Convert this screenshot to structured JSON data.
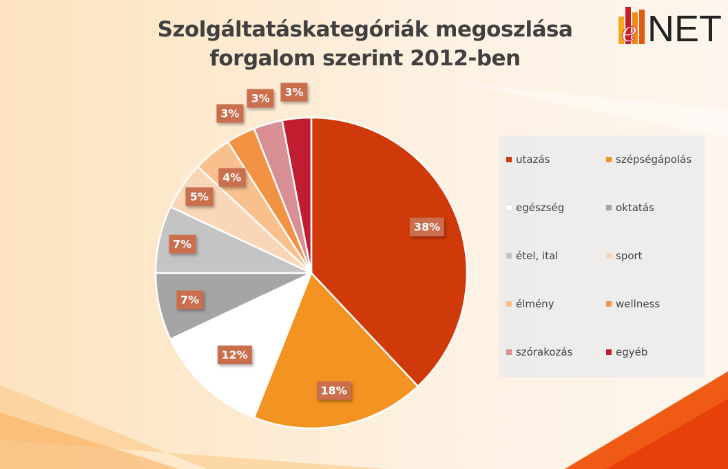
{
  "chart_data": {
    "type": "pie",
    "title": "Szolgáltatáskategóriák megoszlása forgalom szerint 2012-ben",
    "title_lines": [
      "Szolgáltatáskategóriák megoszlása",
      "forgalom szerint 2012-ben"
    ],
    "legend_position": "right",
    "slices": [
      {
        "label": "utazás",
        "value": 38,
        "display": "38%",
        "color": "#D0390A"
      },
      {
        "label": "szépségápolás",
        "value": 18,
        "display": "18%",
        "color": "#F39321"
      },
      {
        "label": "egészség",
        "value": 12,
        "display": "12%",
        "color": "#FFFFFF"
      },
      {
        "label": "oktatás",
        "value": 7,
        "display": "7%",
        "color": "#A5A5A5"
      },
      {
        "label": "étel, ital",
        "value": 7,
        "display": "7%",
        "color": "#C4C4C4"
      },
      {
        "label": "sport",
        "value": 5,
        "display": "5%",
        "color": "#FAD6B8"
      },
      {
        "label": "élmény",
        "value": 4,
        "display": "4%",
        "color": "#F9C08E"
      },
      {
        "label": "wellness",
        "value": 3,
        "display": "3%",
        "color": "#F29344"
      },
      {
        "label": "szórakozás",
        "value": 3,
        "display": "3%",
        "color": "#D99094"
      },
      {
        "label": "egyéb",
        "value": 3,
        "display": "3%",
        "color": "#C01E30"
      }
    ]
  },
  "logo": {
    "text": "eNET"
  }
}
